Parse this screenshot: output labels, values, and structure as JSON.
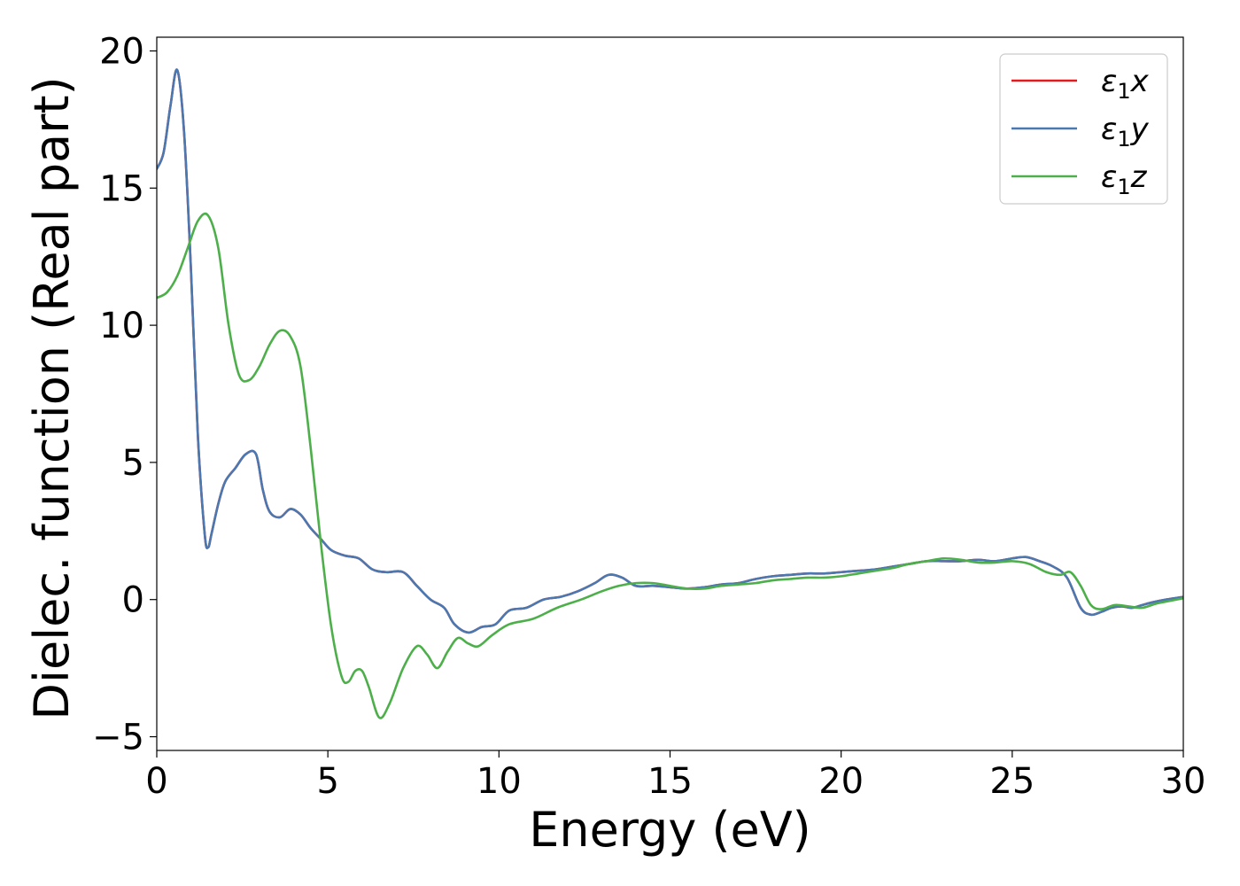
{
  "chart_data": {
    "type": "line",
    "xlabel": "Energy (eV)",
    "ylabel": "Dielec. function (Real part)",
    "xlim": [
      0,
      30
    ],
    "ylim": [
      -5.5,
      20.5
    ],
    "xticks": [
      "0",
      "5",
      "10",
      "15",
      "20",
      "25",
      "30"
    ],
    "yticks": [
      "−5",
      "0",
      "5",
      "10",
      "15",
      "20"
    ],
    "grid": false,
    "legend_position": "top-right",
    "series": [
      {
        "name_base": "ε",
        "name_sub": "1",
        "name_axis": "x",
        "color": "#e41a1c",
        "x": [
          0,
          0.2,
          0.4,
          0.6,
          0.8,
          1.0,
          1.2,
          1.4,
          1.5,
          1.6,
          1.8,
          2.0,
          2.3,
          2.6,
          2.9,
          3.1,
          3.3,
          3.6,
          3.9,
          4.2,
          4.5,
          4.8,
          5.1,
          5.5,
          5.9,
          6.3,
          6.7,
          7.2,
          7.6,
          8.0,
          8.4,
          8.7,
          9.1,
          9.5,
          9.9,
          10.3,
          10.8,
          11.3,
          11.8,
          12.3,
          12.8,
          13.2,
          13.6,
          14.0,
          14.5,
          15.0,
          15.5,
          16.0,
          16.5,
          17.0,
          17.5,
          18.0,
          18.5,
          19.0,
          19.5,
          20.0,
          20.5,
          21.0,
          21.5,
          22.0,
          22.5,
          23.0,
          23.5,
          24.0,
          24.5,
          25.0,
          25.4,
          25.8,
          26.2,
          26.6,
          27.0,
          27.3,
          27.6,
          27.9,
          28.2,
          28.5,
          28.8,
          29.1,
          29.5,
          30.0
        ],
        "y": [
          15.7,
          16.3,
          18.0,
          19.3,
          17.0,
          12.0,
          6.0,
          2.4,
          1.9,
          2.4,
          3.5,
          4.3,
          4.8,
          5.3,
          5.3,
          4.0,
          3.2,
          3.0,
          3.3,
          3.1,
          2.6,
          2.2,
          1.8,
          1.6,
          1.5,
          1.1,
          1.0,
          1.0,
          0.5,
          0.0,
          -0.3,
          -0.9,
          -1.2,
          -1.0,
          -0.9,
          -0.4,
          -0.3,
          0.0,
          0.1,
          0.3,
          0.6,
          0.9,
          0.8,
          0.5,
          0.5,
          0.45,
          0.4,
          0.45,
          0.55,
          0.6,
          0.75,
          0.85,
          0.9,
          0.95,
          0.95,
          1.0,
          1.05,
          1.1,
          1.2,
          1.3,
          1.4,
          1.4,
          1.4,
          1.45,
          1.4,
          1.5,
          1.55,
          1.4,
          1.2,
          0.8,
          -0.3,
          -0.55,
          -0.45,
          -0.3,
          -0.25,
          -0.3,
          -0.2,
          -0.1,
          0.0,
          0.1
        ]
      },
      {
        "name_base": "ε",
        "name_sub": "1",
        "name_axis": "y",
        "color": "#4a78b0",
        "x": [
          0,
          0.2,
          0.4,
          0.6,
          0.8,
          1.0,
          1.2,
          1.4,
          1.5,
          1.6,
          1.8,
          2.0,
          2.3,
          2.6,
          2.9,
          3.1,
          3.3,
          3.6,
          3.9,
          4.2,
          4.5,
          4.8,
          5.1,
          5.5,
          5.9,
          6.3,
          6.7,
          7.2,
          7.6,
          8.0,
          8.4,
          8.7,
          9.1,
          9.5,
          9.9,
          10.3,
          10.8,
          11.3,
          11.8,
          12.3,
          12.8,
          13.2,
          13.6,
          14.0,
          14.5,
          15.0,
          15.5,
          16.0,
          16.5,
          17.0,
          17.5,
          18.0,
          18.5,
          19.0,
          19.5,
          20.0,
          20.5,
          21.0,
          21.5,
          22.0,
          22.5,
          23.0,
          23.5,
          24.0,
          24.5,
          25.0,
          25.4,
          25.8,
          26.2,
          26.6,
          27.0,
          27.3,
          27.6,
          27.9,
          28.2,
          28.5,
          28.8,
          29.1,
          29.5,
          30.0
        ],
        "y": [
          15.7,
          16.3,
          18.0,
          19.3,
          17.0,
          12.0,
          6.0,
          2.4,
          1.9,
          2.4,
          3.5,
          4.3,
          4.8,
          5.3,
          5.3,
          4.0,
          3.2,
          3.0,
          3.3,
          3.1,
          2.6,
          2.2,
          1.8,
          1.6,
          1.5,
          1.1,
          1.0,
          1.0,
          0.5,
          0.0,
          -0.3,
          -0.9,
          -1.2,
          -1.0,
          -0.9,
          -0.4,
          -0.3,
          0.0,
          0.1,
          0.3,
          0.6,
          0.9,
          0.8,
          0.5,
          0.5,
          0.45,
          0.4,
          0.45,
          0.55,
          0.6,
          0.75,
          0.85,
          0.9,
          0.95,
          0.95,
          1.0,
          1.05,
          1.1,
          1.2,
          1.3,
          1.4,
          1.4,
          1.4,
          1.45,
          1.4,
          1.5,
          1.55,
          1.4,
          1.2,
          0.8,
          -0.3,
          -0.55,
          -0.45,
          -0.3,
          -0.25,
          -0.3,
          -0.2,
          -0.1,
          0.0,
          0.1
        ]
      },
      {
        "name_base": "ε",
        "name_sub": "1",
        "name_axis": "z",
        "color": "#4daf4a",
        "x": [
          0,
          0.3,
          0.6,
          0.9,
          1.2,
          1.5,
          1.8,
          2.1,
          2.4,
          2.7,
          3.0,
          3.3,
          3.6,
          3.9,
          4.2,
          4.5,
          4.8,
          5.1,
          5.4,
          5.6,
          5.8,
          6.0,
          6.2,
          6.5,
          6.8,
          7.2,
          7.6,
          7.9,
          8.2,
          8.5,
          8.8,
          9.1,
          9.4,
          9.8,
          10.3,
          11.0,
          11.7,
          12.4,
          13.0,
          13.5,
          14.0,
          14.5,
          15.0,
          15.5,
          16.0,
          16.5,
          17.0,
          17.5,
          18.0,
          18.5,
          19.0,
          19.5,
          20.0,
          20.5,
          21.0,
          21.5,
          22.0,
          22.5,
          23.0,
          23.5,
          24.0,
          24.5,
          25.0,
          25.5,
          26.0,
          26.4,
          26.7,
          27.0,
          27.3,
          27.6,
          28.0,
          28.4,
          28.8,
          29.2,
          29.6,
          30.0
        ],
        "y": [
          11.0,
          11.2,
          11.8,
          12.8,
          13.8,
          14.0,
          12.8,
          10.0,
          8.2,
          8.0,
          8.5,
          9.3,
          9.8,
          9.6,
          8.5,
          5.5,
          2.0,
          -1.0,
          -2.8,
          -3.0,
          -2.6,
          -2.6,
          -3.2,
          -4.3,
          -3.8,
          -2.5,
          -1.7,
          -2.0,
          -2.5,
          -1.9,
          -1.4,
          -1.6,
          -1.7,
          -1.3,
          -0.9,
          -0.7,
          -0.3,
          0.0,
          0.3,
          0.5,
          0.6,
          0.6,
          0.5,
          0.4,
          0.4,
          0.5,
          0.55,
          0.6,
          0.7,
          0.75,
          0.8,
          0.8,
          0.85,
          0.95,
          1.05,
          1.15,
          1.3,
          1.4,
          1.5,
          1.45,
          1.35,
          1.35,
          1.4,
          1.3,
          1.0,
          0.9,
          1.0,
          0.5,
          -0.2,
          -0.35,
          -0.2,
          -0.25,
          -0.3,
          -0.15,
          -0.05,
          0.05
        ]
      }
    ]
  }
}
